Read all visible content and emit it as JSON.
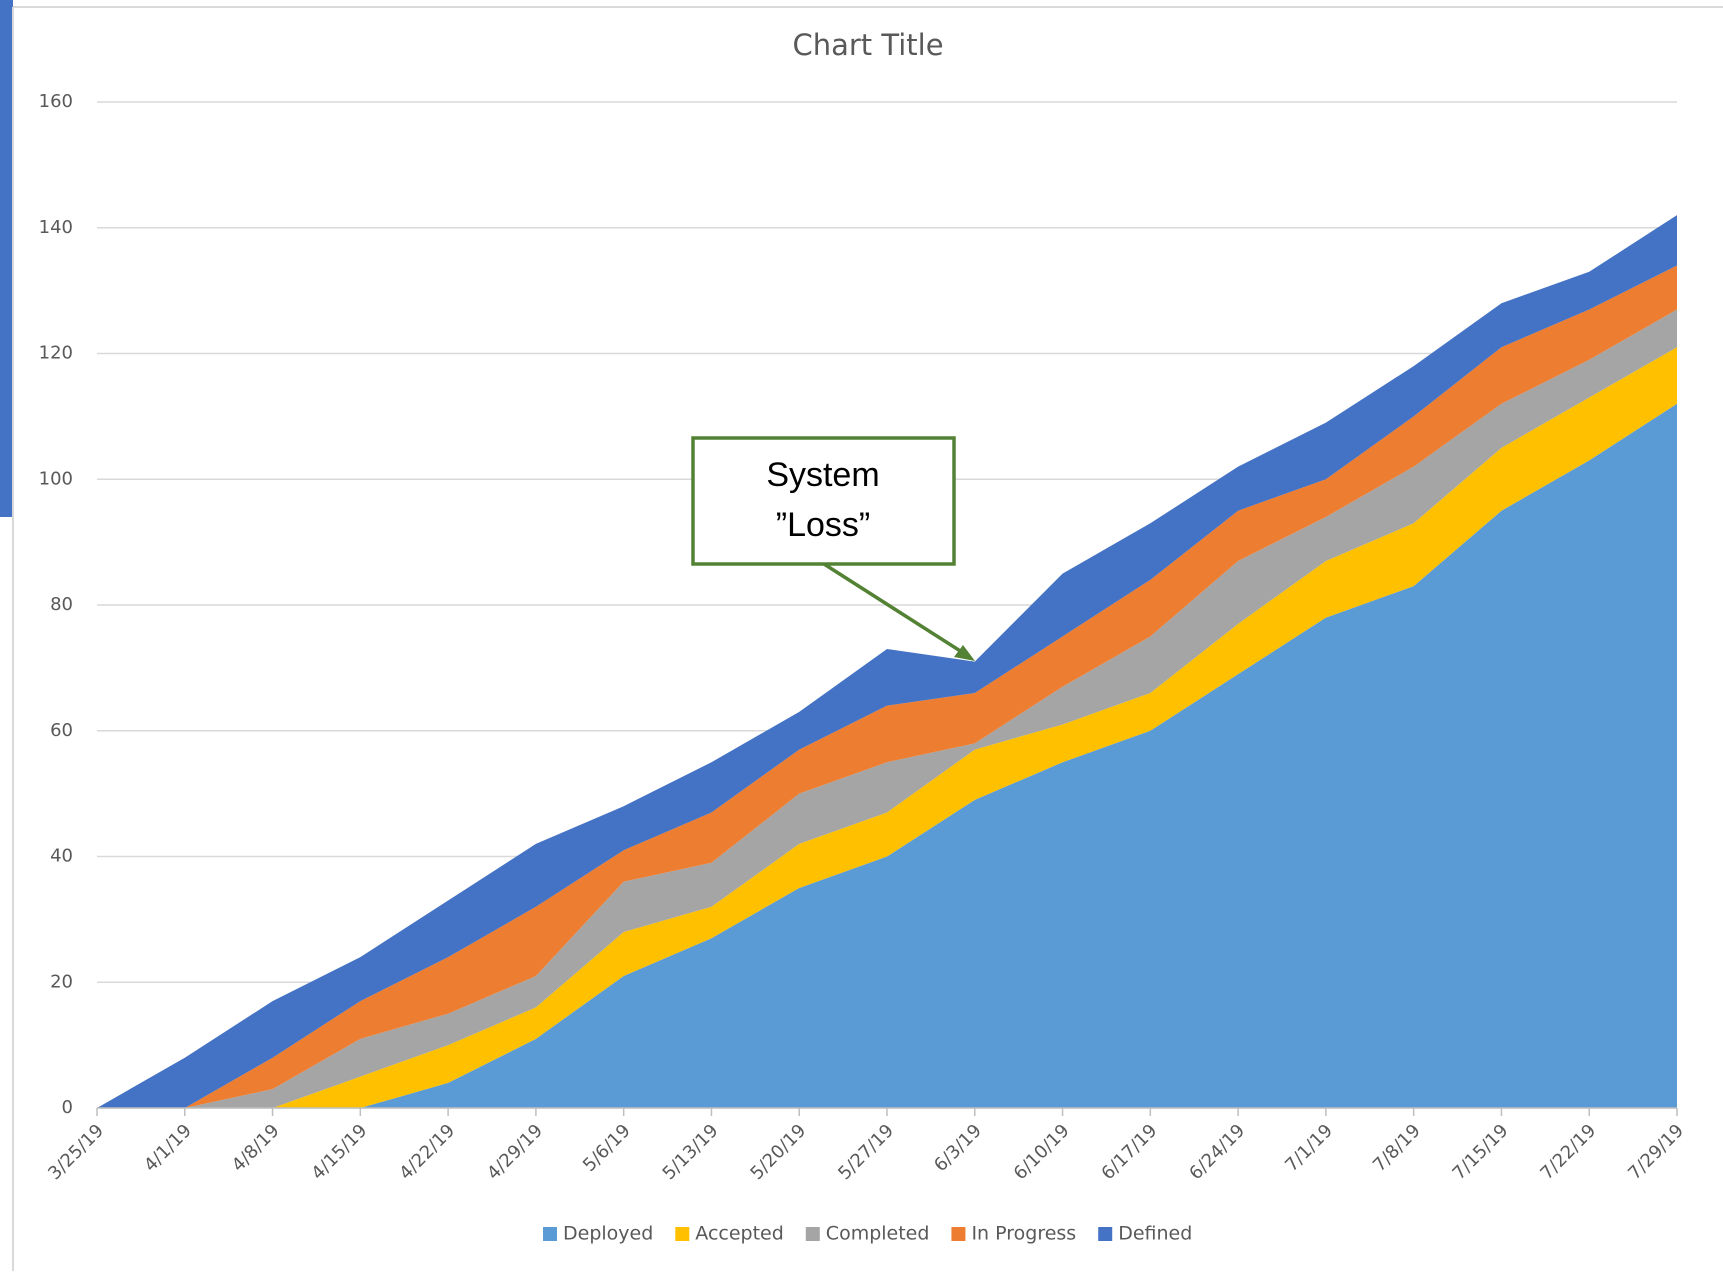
{
  "chart_data": {
    "type": "stacked_area",
    "title": "Chart Title",
    "categories": [
      "3/25/19",
      "4/1/19",
      "4/8/19",
      "4/15/19",
      "4/22/19",
      "4/29/19",
      "5/6/19",
      "5/13/19",
      "5/20/19",
      "5/27/19",
      "6/3/19",
      "6/10/19",
      "6/17/19",
      "6/24/19",
      "7/1/19",
      "7/8/19",
      "7/15/19",
      "7/22/19",
      "7/29/19"
    ],
    "series": [
      {
        "name": "Deployed",
        "color": "#5b9bd5",
        "values": [
          0,
          0,
          0,
          0,
          4,
          11,
          21,
          27,
          35,
          40,
          49,
          55,
          60,
          69,
          78,
          83,
          95,
          103,
          112
        ]
      },
      {
        "name": "Accepted",
        "color": "#ffc000",
        "values": [
          0,
          0,
          0,
          5,
          6,
          5,
          7,
          5,
          7,
          7,
          8,
          6,
          6,
          8,
          9,
          10,
          10,
          10,
          9
        ]
      },
      {
        "name": "Completed",
        "color": "#a5a5a5",
        "values": [
          0,
          0,
          3,
          6,
          5,
          5,
          8,
          7,
          8,
          8,
          1,
          6,
          9,
          10,
          7,
          9,
          7,
          6,
          6
        ]
      },
      {
        "name": "In Progress",
        "color": "#ed7d31",
        "values": [
          0,
          0,
          5,
          6,
          9,
          11,
          5,
          8,
          7,
          9,
          8,
          8,
          9,
          8,
          6,
          8,
          9,
          8,
          7
        ]
      },
      {
        "name": "Defined",
        "color": "#4472c4",
        "values": [
          0,
          8,
          9,
          7,
          9,
          10,
          7,
          8,
          6,
          9,
          5,
          10,
          9,
          7,
          9,
          8,
          7,
          6,
          8
        ]
      }
    ],
    "ylim": [
      0,
      160
    ],
    "yticks": [
      0,
      20,
      40,
      60,
      80,
      100,
      120,
      140,
      160
    ],
    "grid": true,
    "legend": "bottom",
    "annotation": [
      "System",
      "”Loss”"
    ]
  }
}
